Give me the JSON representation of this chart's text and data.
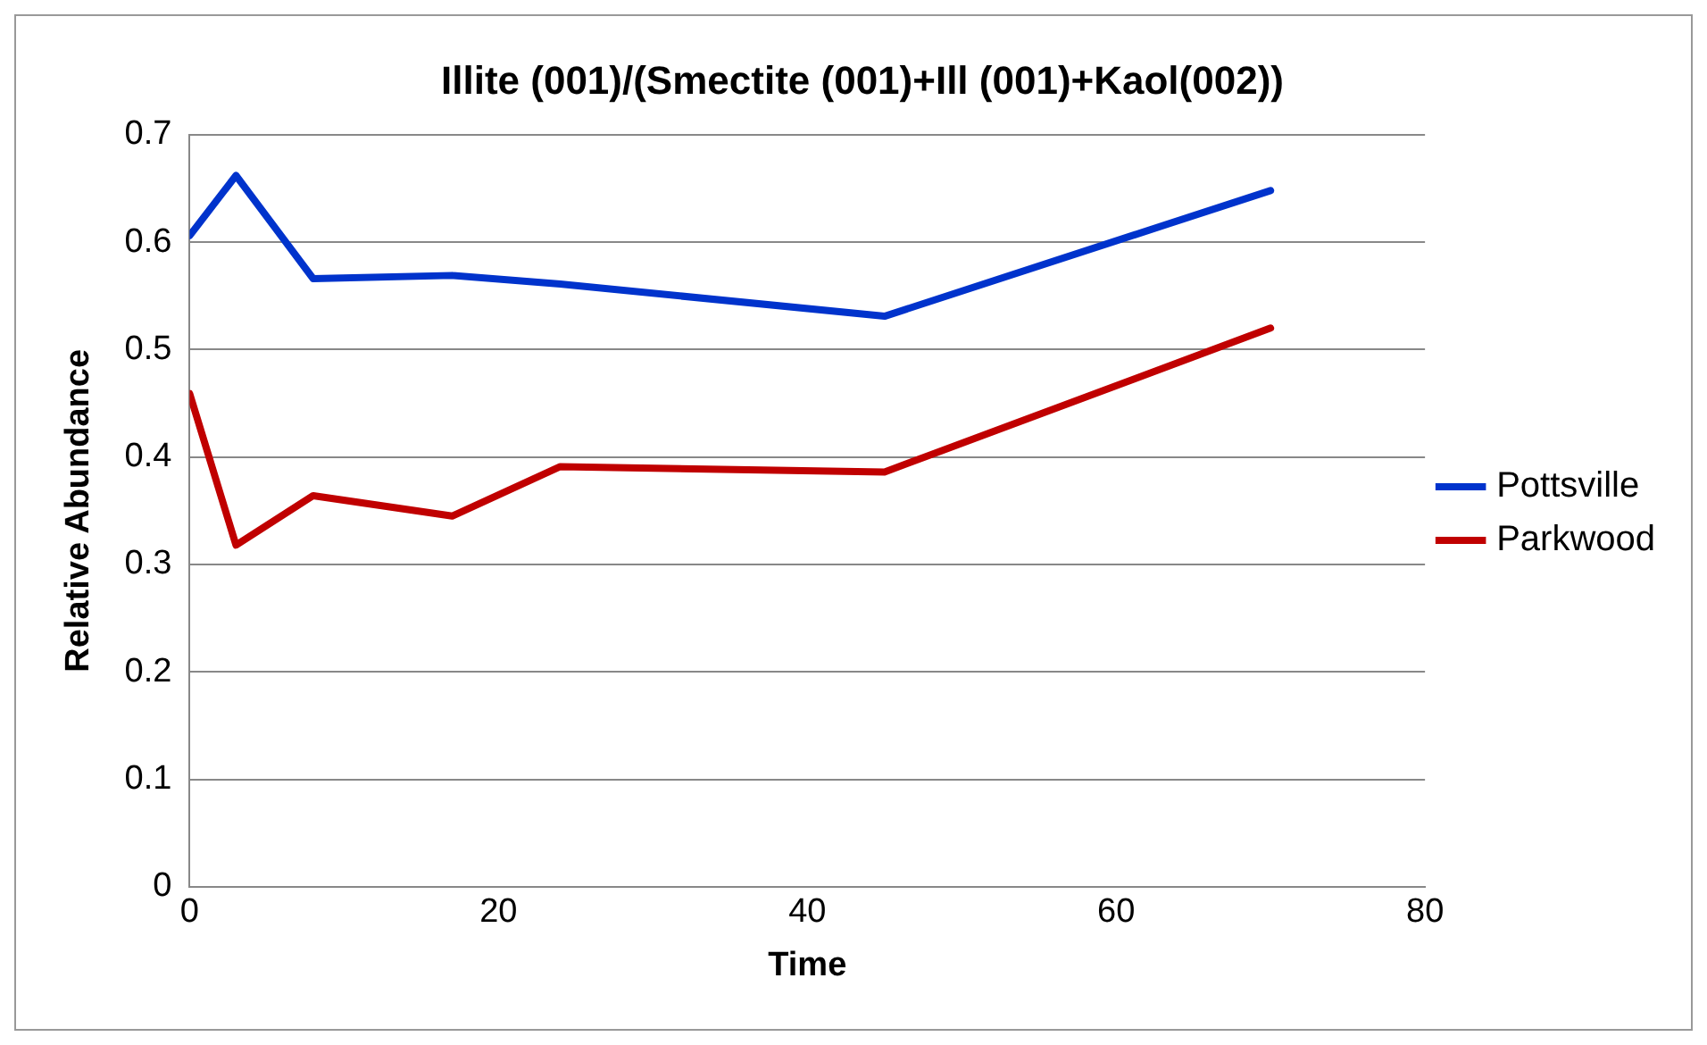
{
  "chart_data": {
    "type": "line",
    "title": "Illite (001)/(Smectite (001)+Ill (001)+Kaol(002))",
    "xlabel": "Time",
    "ylabel": "Relative Abundance",
    "xlim": [
      0,
      80
    ],
    "xticks": [
      0,
      20,
      40,
      60,
      80
    ],
    "ylim": [
      0,
      0.7
    ],
    "yticks": [
      0,
      0.1,
      0.2,
      0.3,
      0.4,
      0.5,
      0.6,
      0.7
    ],
    "grid": "y",
    "legend": "right",
    "marker": "none",
    "series": [
      {
        "name": "Pottsville",
        "color": "#0033cc",
        "x": [
          0,
          3,
          8,
          17,
          24,
          45,
          70
        ],
        "values": [
          0.606,
          0.662,
          0.566,
          0.569,
          0.561,
          0.531,
          0.648
        ]
      },
      {
        "name": "Parkwood",
        "color": "#c00000",
        "x": [
          0,
          3,
          8,
          17,
          24,
          45,
          70
        ],
        "values": [
          0.459,
          0.318,
          0.364,
          0.345,
          0.391,
          0.386,
          0.52
        ]
      }
    ]
  }
}
